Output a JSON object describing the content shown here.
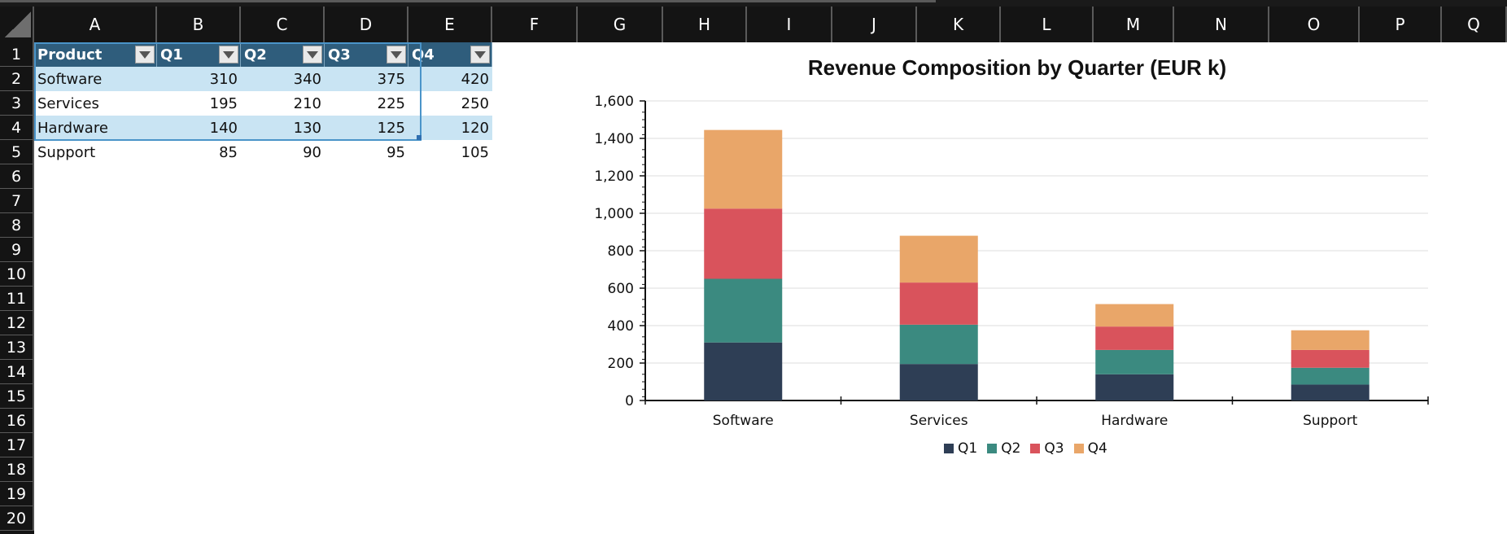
{
  "columns": [
    "A",
    "B",
    "C",
    "D",
    "E",
    "F",
    "G",
    "H",
    "I",
    "J",
    "K",
    "L",
    "M",
    "N",
    "O",
    "P",
    "Q"
  ],
  "rows": [
    "1",
    "2",
    "3",
    "4",
    "5",
    "6",
    "7",
    "8",
    "9",
    "10",
    "11",
    "12",
    "13",
    "14",
    "15",
    "16",
    "17",
    "18",
    "19",
    "20"
  ],
  "table": {
    "headers": [
      "Product",
      "Q1",
      "Q2",
      "Q3",
      "Q4"
    ],
    "rows": [
      [
        "Software",
        "310",
        "340",
        "375",
        "420"
      ],
      [
        "Services",
        "195",
        "210",
        "225",
        "250"
      ],
      [
        "Hardware",
        "140",
        "130",
        "125",
        "120"
      ],
      [
        "Support",
        "85",
        "90",
        "95",
        "105"
      ]
    ]
  },
  "colors": {
    "header_fill": "#2f5d7c",
    "band_fill": "#c9e4f3",
    "Q1": "#2e3e55",
    "Q2": "#3b8a80",
    "Q3": "#d9535c",
    "Q4": "#e9a669"
  },
  "chart_data": {
    "type": "bar",
    "stacked": true,
    "title": "Revenue Composition by Quarter (EUR k)",
    "categories": [
      "Software",
      "Services",
      "Hardware",
      "Support"
    ],
    "series": [
      {
        "name": "Q1",
        "values": [
          310,
          195,
          140,
          85
        ],
        "color": "#2e3e55"
      },
      {
        "name": "Q2",
        "values": [
          340,
          210,
          130,
          90
        ],
        "color": "#3b8a80"
      },
      {
        "name": "Q3",
        "values": [
          375,
          225,
          125,
          95
        ],
        "color": "#d9535c"
      },
      {
        "name": "Q4",
        "values": [
          420,
          250,
          120,
          105
        ],
        "color": "#e9a669"
      }
    ],
    "ylim": [
      0,
      1600
    ],
    "ytick_labels": [
      "0",
      "200",
      "400",
      "600",
      "800",
      "1,000",
      "1,200",
      "1,400",
      "1,600"
    ],
    "grid": true,
    "legend": "bottom"
  }
}
